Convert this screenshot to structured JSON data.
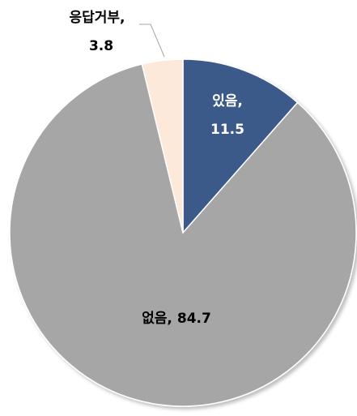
{
  "chart_data": {
    "type": "pie",
    "categories": [
      "있음,",
      "없음,",
      "응답거부,"
    ],
    "values": [
      11.5,
      84.7,
      3.8
    ],
    "colors": [
      "#3b5a8a",
      "#a6a6a6",
      "#fde9d9"
    ]
  }
}
